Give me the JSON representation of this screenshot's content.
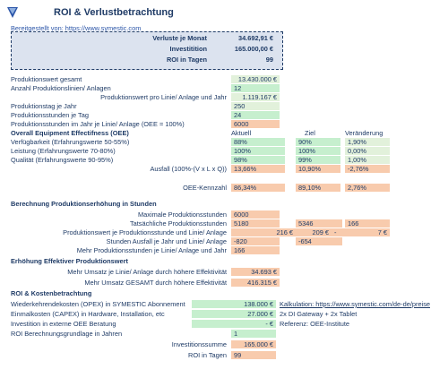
{
  "header": {
    "title": "ROI & Verlustbetrachtung",
    "provided_by": "Bereitgestellt von: https://www.symestic.com"
  },
  "summary": [
    {
      "label": "Verluste je Monat",
      "value": "34.692,91 €"
    },
    {
      "label": "Investitition",
      "value": "165.000,00 €"
    },
    {
      "label": "ROI in Tagen",
      "value": "99"
    }
  ],
  "inputs": [
    {
      "label": "Produktionswert gesamt",
      "value": "13.430.000 €"
    },
    {
      "label": "Anzahl Produktionslinien/ Anlagen",
      "value": "12"
    },
    {
      "label": "Produktionswert pro Linie/ Anlage und Jahr",
      "value": "1.119.167 €"
    },
    {
      "label": "Produktionstag je Jahr",
      "value": "250"
    },
    {
      "label": "Produktionsstunden je Tag",
      "value": "24"
    },
    {
      "label": "Produktionsstunden im Jahr je Linie/ Anlage (OEE = 100%)",
      "value": "6000"
    }
  ],
  "oee": {
    "heading": "Overall Equipment Effectifness (OEE)",
    "col_actual": "Aktuell",
    "col_target": "Ziel",
    "col_change": "Veränderung",
    "rows": [
      {
        "label": "Verfügbarkeit (Erfahrungswerte 50-55%)",
        "actual": "88%",
        "target": "90%",
        "change": "1,90%"
      },
      {
        "label": "Leistung (Erfahrungswerte 70-80%)",
        "actual": "100%",
        "target": "100%",
        "change": "0,00%"
      },
      {
        "label": "Qualität (Erfahrungswerte 90-95%)",
        "actual": "98%",
        "target": "99%",
        "change": "1,00%"
      },
      {
        "label": "Ausfall (100%-(V x L x Q))",
        "actual": "13,66%",
        "target": "10,90%",
        "change": "-2,76%"
      }
    ],
    "kennzahl": {
      "label": "OEE-Kennzahl",
      "actual": "86,34%",
      "target": "89,10%",
      "change": "2,76%"
    }
  },
  "calc": {
    "heading": "Berechnung Produktionserhöhung in Stunden",
    "rows": [
      {
        "label": "Maximale Produktionsstunden",
        "a": "6000",
        "b": "",
        "c": ""
      },
      {
        "label": "Tatsächliche Produktionsstunden",
        "a": "5180",
        "b": "5346",
        "c": "166"
      },
      {
        "label": "Produktionswert je Produktionsstunde und Linie/ Anlage",
        "a": "216 €",
        "b": "209 €",
        "b2": "-",
        "c": "7 €"
      },
      {
        "label": "Stunden Ausfall je Jahr und Linie/ Anlage",
        "a": "-820",
        "b": "-654",
        "c": ""
      },
      {
        "label": "Mehr Produktionsstunden je Linie/ Anlage und Jahr",
        "a": "166",
        "b": "",
        "c": ""
      }
    ]
  },
  "effective": {
    "heading": "Erhöhung Effektiver Produktionswert",
    "rows": [
      {
        "label": "Mehr Umsatz je Linie/ Anlage durch höhere Effektivität",
        "value": "34.693 €"
      },
      {
        "label": "Mehr Umsatz GESAMT durch höhere Effektivität",
        "value": "416.315 €"
      }
    ]
  },
  "roi": {
    "heading": "ROI & Kostenbetrachtung",
    "rows": [
      {
        "label": "Wiederkehrendekosten (OPEX) in SYMESTIC Abonnement",
        "value": "138.000 €",
        "note": "Kalkulation: https://www.symestic.com/de-de/preise"
      },
      {
        "label": "Einmalkosten (CAPEX) in Hardware, Installation, etc",
        "value": "27.000 €",
        "note": "2x DI Gateway + 2x Tablet"
      },
      {
        "label": "Investition in externe OEE Beratung",
        "value": "-  €",
        "note": "Referenz: OEE-Institute"
      },
      {
        "label": "ROI Berechnungsgrundlage in Jahren",
        "value": "1",
        "note": ""
      }
    ],
    "total": {
      "label": "Investitionssumme",
      "value": "165.000 €"
    },
    "days": {
      "label": "ROI in Tagen",
      "value": "99"
    }
  },
  "colors": {
    "green": "#c6efce",
    "light_green": "#e2f1db",
    "orange": "#f8cbad",
    "text": "#1f3b66",
    "link": "#2b55a8"
  }
}
